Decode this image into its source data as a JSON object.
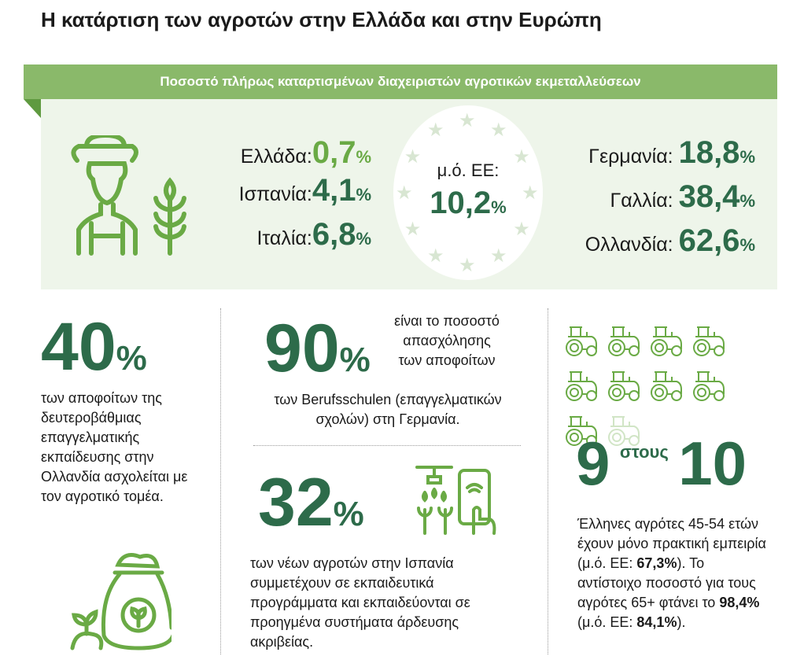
{
  "title": "Η κατάρτιση των αγροτών στην Ελλάδα και στην Ευρώπη",
  "banner": "Ποσοστό πλήρως καταρτισμένων διαχειριστών αγροτικών εκμεταλλεύσεων",
  "left_stats": [
    {
      "country": "Ελλάδα:",
      "value": "0,7",
      "unit": "%"
    },
    {
      "country": "Ισπανία:",
      "value": "4,1",
      "unit": "%"
    },
    {
      "country": "Ιταλία:",
      "value": "6,8",
      "unit": "%"
    }
  ],
  "eu": {
    "label": "μ.ό. ΕΕ:",
    "value": "10,2",
    "unit": "%"
  },
  "right_stats": [
    {
      "country": "Γερμανία:",
      "value": "18,8",
      "unit": "%"
    },
    {
      "country": "Γαλλία:",
      "value": "38,4",
      "unit": "%"
    },
    {
      "country": "Ολλανδία:",
      "value": "62,6",
      "unit": "%"
    }
  ],
  "netherlands": {
    "value": "40",
    "unit": "%",
    "text": "των αποφοίτων της δευτεροβάθμιας επαγγελματικής εκπαίδευσης στην Ολλανδία ασχολείται με τον αγροτικό τομέα."
  },
  "germany": {
    "value": "90",
    "unit": "%",
    "text_side": "είναι το ποσοστό απασχόλησης των αποφοίτων",
    "text_below": "των Berufsschulen (επαγγελματικών σχολών) στη Γερμανία."
  },
  "spain": {
    "value": "32",
    "unit": "%",
    "text": "των νέων αγροτών στην Ισπανία συμμετέχουν σε εκπαιδευτικά προγράμματα και εκπαιδεύονται σε προηγμένα συστήματα άρδευσης ακριβείας."
  },
  "greece": {
    "num": "9",
    "mid": "στους",
    "den": "10",
    "tractors_filled": 9,
    "tractors_total": 10,
    "text1": "Έλληνες αγρότες 45-54 ετών έχουν μόνο πρακτική εμπειρία (μ.ό. ΕΕ: ",
    "b1": "67,3%",
    "text2": "). Το αντίστοιχο ποσοστό για τους αγρότες 65+ φτάνει το ",
    "b2": "98,4%",
    "text3": " (μ.ό. ΕΕ: ",
    "b3": "84,1%",
    "text4": ")."
  }
}
